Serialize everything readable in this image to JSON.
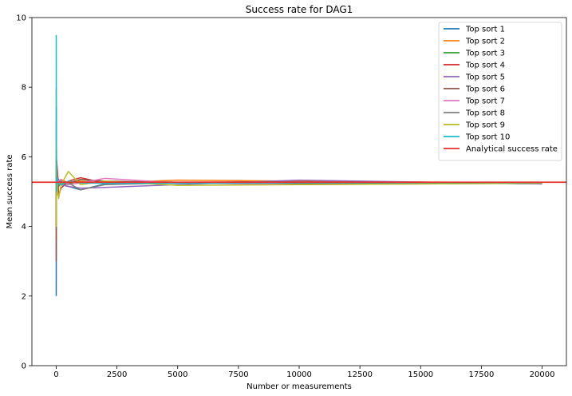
{
  "chart_data": {
    "type": "line",
    "title": "Success rate for DAG1",
    "xlabel": "Number or measurements",
    "ylabel": "Mean success rate",
    "xlim": [
      -1000,
      21000
    ],
    "ylim": [
      0,
      10
    ],
    "xticks": [
      0,
      2500,
      5000,
      7500,
      10000,
      12500,
      15000,
      17500,
      20000
    ],
    "yticks": [
      0,
      2,
      4,
      6,
      8,
      10
    ],
    "grid": false,
    "legend": "top-right",
    "x": [
      1,
      5,
      10,
      20,
      50,
      100,
      200,
      500,
      1000,
      2000,
      5000,
      10000,
      20000
    ],
    "series": [
      {
        "name": "Top sort 1",
        "color": "#1f77b4",
        "values": [
          2.0,
          7.4,
          5.7,
          5.2,
          5.1,
          5.25,
          5.2,
          5.15,
          5.05,
          5.22,
          5.25,
          5.3,
          5.22
        ]
      },
      {
        "name": "Top sort 2",
        "color": "#ff7f0e",
        "values": [
          5.0,
          3.6,
          5.9,
          5.0,
          5.5,
          5.3,
          5.35,
          5.25,
          5.3,
          5.25,
          5.33,
          5.3,
          5.25
        ]
      },
      {
        "name": "Top sort 3",
        "color": "#2ca02c",
        "values": [
          6.0,
          5.1,
          4.8,
          5.5,
          5.3,
          5.15,
          5.25,
          5.2,
          5.35,
          5.28,
          5.27,
          5.24,
          5.26
        ]
      },
      {
        "name": "Top sort 4",
        "color": "#d62728",
        "values": [
          4.0,
          6.0,
          5.0,
          5.9,
          5.6,
          4.9,
          5.1,
          5.3,
          5.4,
          5.25,
          5.27,
          5.28,
          5.25
        ]
      },
      {
        "name": "Top sort 5",
        "color": "#9467bd",
        "values": [
          7.0,
          6.4,
          5.5,
          4.9,
          5.4,
          5.35,
          5.2,
          5.15,
          5.1,
          5.12,
          5.2,
          5.33,
          5.22
        ]
      },
      {
        "name": "Top sort 6",
        "color": "#8c564b",
        "values": [
          3.0,
          5.7,
          5.4,
          5.0,
          5.25,
          5.3,
          5.3,
          5.25,
          5.35,
          5.3,
          5.27,
          5.23,
          5.26
        ]
      },
      {
        "name": "Top sort 7",
        "color": "#e377c2",
        "values": [
          6.0,
          5.2,
          6.2,
          4.9,
          5.15,
          5.3,
          5.35,
          5.2,
          5.25,
          5.38,
          5.25,
          5.2,
          5.24
        ]
      },
      {
        "name": "Top sort 8",
        "color": "#7f7f7f",
        "values": [
          5.0,
          5.5,
          4.8,
          5.3,
          5.2,
          5.25,
          5.3,
          5.25,
          5.05,
          5.2,
          5.25,
          5.28,
          5.24
        ]
      },
      {
        "name": "Top sort 9",
        "color": "#bcbd22",
        "values": [
          8.0,
          4.0,
          6.4,
          5.6,
          5.1,
          4.8,
          5.2,
          5.58,
          5.2,
          5.3,
          5.18,
          5.2,
          5.24
        ]
      },
      {
        "name": "Top sort 10",
        "color": "#17becf",
        "values": [
          9.5,
          5.0,
          5.2,
          5.4,
          5.3,
          5.25,
          5.2,
          5.3,
          5.25,
          5.24,
          5.24,
          5.25,
          5.26
        ]
      }
    ],
    "analytical": {
      "name": "Analytical success rate",
      "color": "#e8312a",
      "value": 5.27
    }
  }
}
